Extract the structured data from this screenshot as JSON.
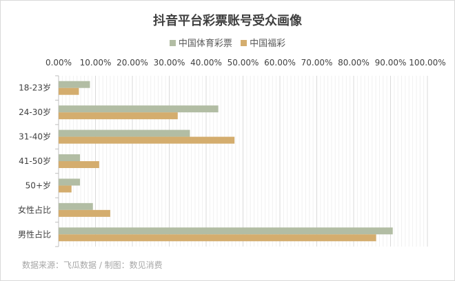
{
  "chart_data": {
    "type": "bar",
    "orientation": "horizontal",
    "title": "抖音平台彩票账号受众画像",
    "categories": [
      "18-23岁",
      "24-30岁",
      "31-40岁",
      "41-50岁",
      "50+岁",
      "女性占比",
      "男性占比"
    ],
    "series": [
      {
        "name": "中国体育彩票",
        "color": "#b2bda4",
        "values": [
          0.085,
          0.433,
          0.356,
          0.058,
          0.058,
          0.093,
          0.906
        ]
      },
      {
        "name": "中国福彩",
        "color": "#d4ad6e",
        "values": [
          0.055,
          0.323,
          0.477,
          0.11,
          0.035,
          0.14,
          0.861
        ]
      }
    ],
    "x_ticks": [
      "0.00%",
      "10.00%",
      "20.00%",
      "30.00%",
      "40.00%",
      "50.00%",
      "60.00%",
      "70.00%",
      "80.00%",
      "90.00%",
      "100.00%"
    ],
    "xlim": [
      0,
      1
    ],
    "x_axis_position": "top",
    "grid": true,
    "legend_position": "top",
    "source": "数据来源：飞瓜数据 / 制图：数见消费"
  }
}
